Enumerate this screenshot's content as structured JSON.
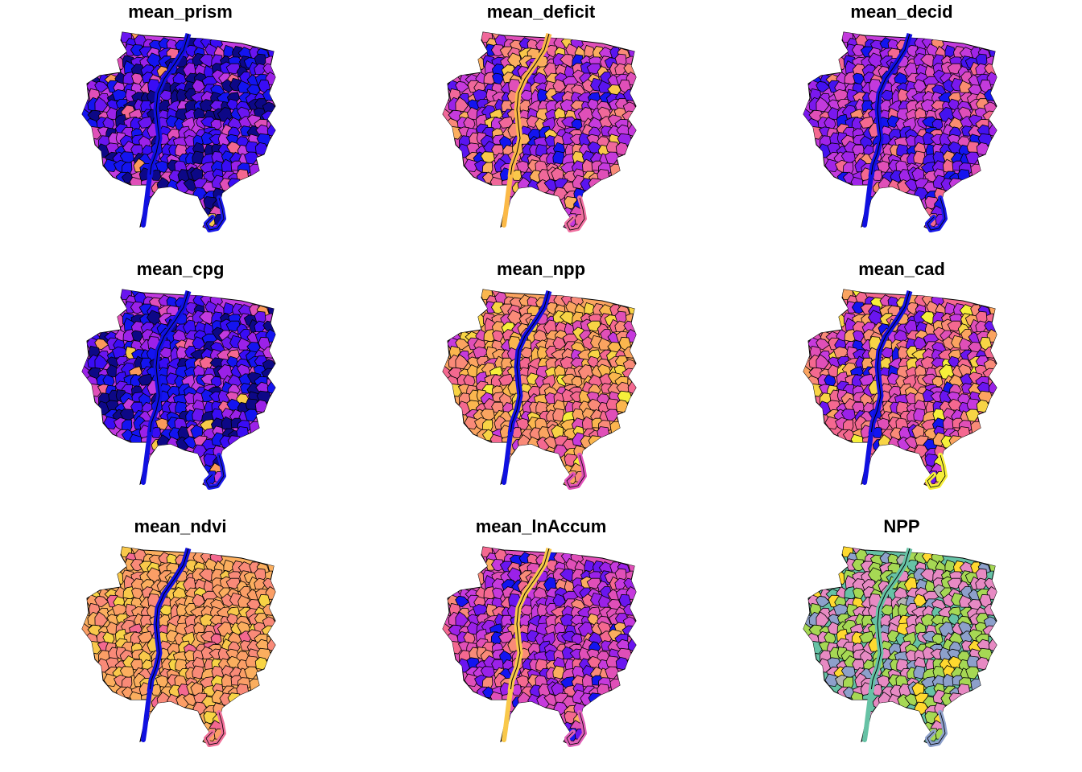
{
  "figure": {
    "panels": [
      {
        "id": "mean_prism",
        "title": "mean_prism",
        "palette": [
          "#0D0887",
          "#1414F0",
          "#3A0CF5",
          "#6A15F0",
          "#9B21E8",
          "#C23AE0",
          "#E04FB8",
          "#F46890",
          "#FB9A5A",
          "#F8C948"
        ],
        "bias": [
          0.22,
          0.2,
          0.2,
          0.14,
          0.1,
          0.06,
          0.04,
          0.02,
          0.01,
          0.01
        ],
        "river_color": "#1010E0",
        "tail_color": "#1818E8"
      },
      {
        "id": "mean_deficit",
        "title": "mean_deficit",
        "palette": [
          "#1414F0",
          "#5A14F0",
          "#9A22E8",
          "#C63ADD",
          "#E04FB8",
          "#F0689A",
          "#F98A78",
          "#FBAE5E",
          "#F9C84A"
        ],
        "bias": [
          0.06,
          0.14,
          0.14,
          0.14,
          0.16,
          0.14,
          0.1,
          0.07,
          0.05
        ],
        "river_color": "#FBB947",
        "tail_color": "#F070A0"
      },
      {
        "id": "mean_decid",
        "title": "mean_decid",
        "palette": [
          "#1414F0",
          "#4412F0",
          "#7A18EE",
          "#A024E8",
          "#C33ADC",
          "#E04FB8",
          "#F46890",
          "#FA8C70"
        ],
        "bias": [
          0.1,
          0.14,
          0.16,
          0.16,
          0.16,
          0.14,
          0.1,
          0.04
        ],
        "river_color": "#1010E0",
        "tail_color": "#1818E8"
      },
      {
        "id": "mean_cpg",
        "title": "mean_cpg",
        "palette": [
          "#0D0887",
          "#1414F0",
          "#3A0CF5",
          "#6A15F0",
          "#9B21E8",
          "#C23AE0",
          "#E04FB8",
          "#F46890",
          "#FB9A5A",
          "#F8C948"
        ],
        "bias": [
          0.18,
          0.22,
          0.2,
          0.14,
          0.1,
          0.06,
          0.04,
          0.03,
          0.02,
          0.01
        ],
        "river_color": "#1010E0",
        "tail_color": "#1818E8"
      },
      {
        "id": "mean_npp",
        "title": "mean_npp",
        "palette": [
          "#C63ADD",
          "#E04FB8",
          "#F46890",
          "#F98A78",
          "#FBA460",
          "#FBB64E",
          "#F8D445",
          "#F6EF3A"
        ],
        "bias": [
          0.04,
          0.12,
          0.22,
          0.2,
          0.18,
          0.14,
          0.07,
          0.03
        ],
        "river_color": "#1010E0",
        "tail_color": "#E050B8"
      },
      {
        "id": "mean_cad",
        "title": "mean_cad",
        "palette": [
          "#1414F0",
          "#6A15F0",
          "#9B21E8",
          "#C63ADD",
          "#E04FB8",
          "#F46890",
          "#F98A78",
          "#FBA460",
          "#F8D445",
          "#F6EF3A"
        ],
        "bias": [
          0.08,
          0.1,
          0.1,
          0.1,
          0.14,
          0.16,
          0.12,
          0.1,
          0.06,
          0.04
        ],
        "river_color": "#1010E0",
        "tail_color": "#F6EF3A"
      },
      {
        "id": "mean_ndvi",
        "title": "mean_ndvi",
        "palette": [
          "#F46890",
          "#F98A78",
          "#FB9E66",
          "#FBAE5E",
          "#F9C84A",
          "#F8D445"
        ],
        "bias": [
          0.04,
          0.3,
          0.3,
          0.18,
          0.12,
          0.06
        ],
        "river_color": "#1010E0",
        "tail_color": "#F07098"
      },
      {
        "id": "mean_lnAccum",
        "title": "mean_lnAccum",
        "palette": [
          "#1414F0",
          "#6A15F0",
          "#9B21E8",
          "#C63ADD",
          "#E04FB8",
          "#F46890",
          "#F98A78",
          "#FBAE5E"
        ],
        "bias": [
          0.06,
          0.1,
          0.18,
          0.22,
          0.22,
          0.14,
          0.06,
          0.02
        ],
        "river_color": "#F9C84A",
        "tail_color": "#E060B8"
      },
      {
        "id": "NPP",
        "title": "NPP",
        "palette": [
          "#E78AC3",
          "#A6D854",
          "#8DA0CB",
          "#66C2A5",
          "#FFD92F",
          "#B3B3B3"
        ],
        "bias": [
          0.4,
          0.34,
          0.14,
          0.04,
          0.06,
          0.02
        ],
        "river_color": "#66C2A5",
        "tail_color": "#8DA0CB"
      }
    ]
  }
}
